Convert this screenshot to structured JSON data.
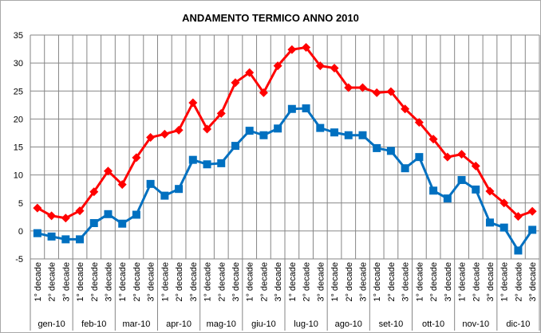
{
  "chart_data": {
    "type": "line",
    "title": "ANDAMENTO TERMICO ANNO 2010",
    "ylim": [
      -5,
      35
    ],
    "yticks": [
      -5,
      0,
      5,
      10,
      15,
      20,
      25,
      30,
      35
    ],
    "grid": true,
    "decade_labels": [
      "1° decade",
      "2° decade",
      "3° decade"
    ],
    "months": [
      "gen-10",
      "feb-10",
      "mar-10",
      "apr-10",
      "mag-10",
      "giu-10",
      "lug-10",
      "ago-10",
      "set-10",
      "ott-10",
      "nov-10",
      "dic-10"
    ],
    "series": [
      {
        "color": "#ff0000",
        "marker": "diamond",
        "values": [
          4.1,
          2.7,
          2.3,
          3.6,
          7.0,
          10.7,
          8.3,
          13.1,
          16.7,
          17.3,
          18.0,
          22.9,
          18.2,
          21.0,
          26.5,
          28.3,
          24.7,
          29.5,
          32.4,
          32.8,
          29.5,
          29.1,
          25.6,
          25.6,
          24.7,
          24.9,
          21.8,
          19.4,
          16.4,
          13.2,
          13.7,
          11.6,
          7.1,
          5.0,
          2.6,
          3.5
        ]
      },
      {
        "color": "#0070c0",
        "marker": "square",
        "values": [
          -0.4,
          -1.0,
          -1.5,
          -1.5,
          1.4,
          3.0,
          1.3,
          2.9,
          8.4,
          6.3,
          7.5,
          12.7,
          11.9,
          12.1,
          15.2,
          17.9,
          17.1,
          18.3,
          21.8,
          21.9,
          18.4,
          17.6,
          17.1,
          17.1,
          14.8,
          14.3,
          11.2,
          13.2,
          7.2,
          5.8,
          9.1,
          7.4,
          1.5,
          0.6,
          -3.5,
          0.2
        ]
      }
    ]
  }
}
